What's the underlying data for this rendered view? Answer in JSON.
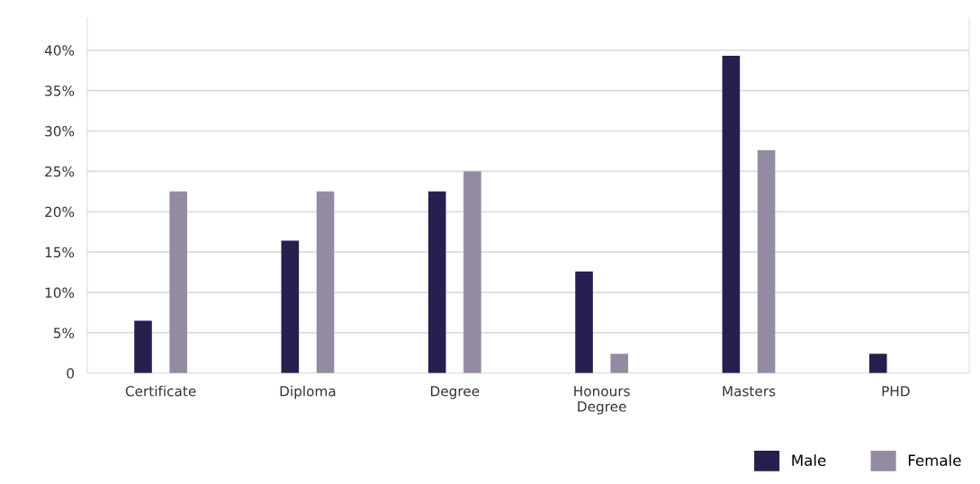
{
  "chart_data": {
    "type": "bar",
    "categories": [
      "Certificate",
      "Diploma",
      "Degree",
      "Honours\nDegree",
      "Masters",
      "PHD"
    ],
    "series": [
      {
        "name": "Male",
        "color": "#261f4f",
        "values": [
          6.5,
          16.4,
          22.5,
          12.6,
          39.3,
          2.4
        ]
      },
      {
        "name": "Female",
        "color": "#948ba3",
        "values": [
          22.5,
          22.5,
          25,
          2.4,
          27.6,
          0
        ]
      }
    ],
    "ylim": [
      0,
      44
    ],
    "yticks": [
      0,
      {
        "value": 5,
        "label": "5%"
      },
      {
        "value": 10,
        "label": "10%"
      },
      {
        "value": 15,
        "label": "15%"
      },
      {
        "value": 20,
        "label": "20%"
      },
      {
        "value": 25,
        "label": "25%"
      },
      {
        "value": 30,
        "label": "30%"
      },
      {
        "value": 35,
        "label": "35%"
      },
      {
        "value": 40,
        "label": "40%"
      }
    ],
    "grid": "y",
    "legend": "bottom right"
  }
}
